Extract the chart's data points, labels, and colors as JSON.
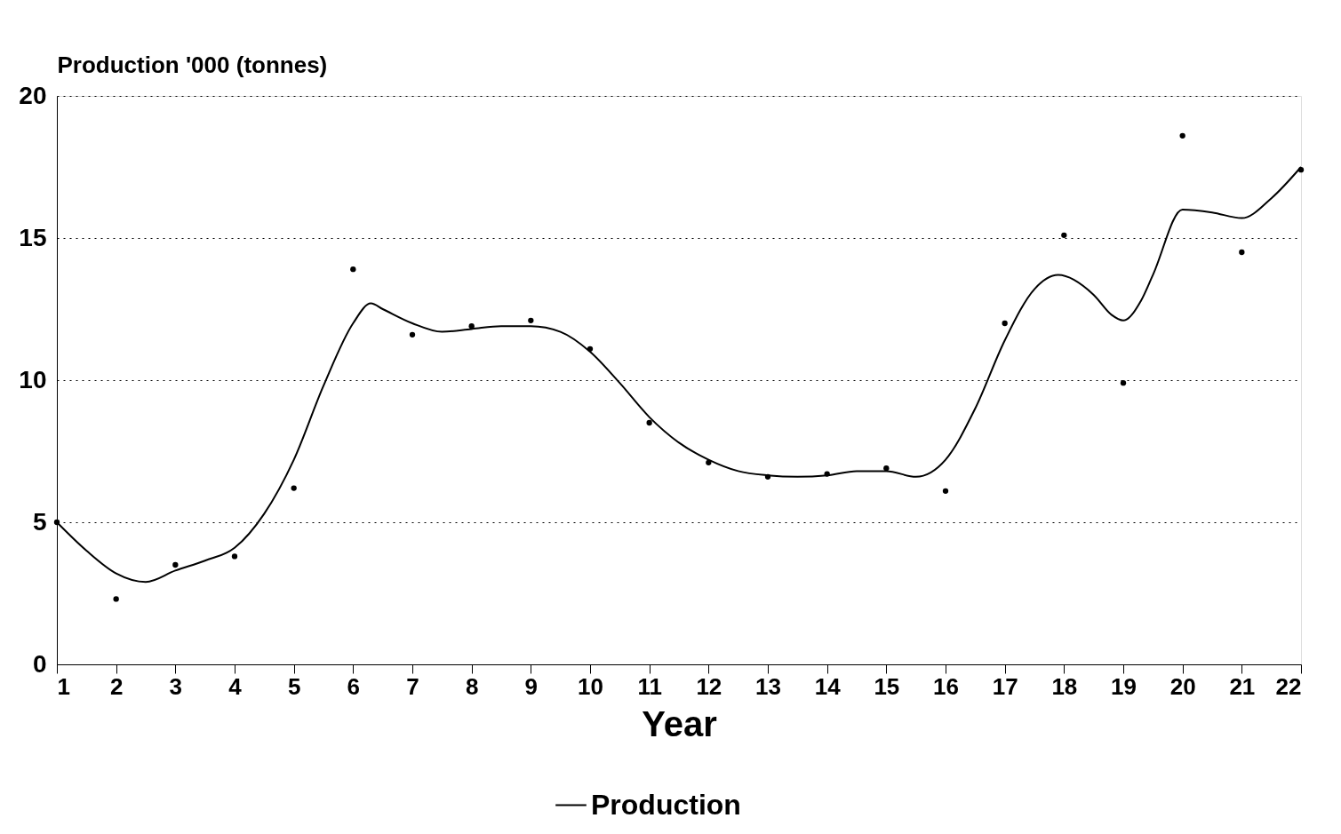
{
  "chart_data": {
    "type": "line",
    "xlabel": "Year",
    "ylabel": "Production '000 (tonnes)",
    "xlim": [
      1,
      22
    ],
    "xticks": [
      1,
      2,
      3,
      4,
      5,
      6,
      7,
      8,
      9,
      10,
      11,
      12,
      13,
      14,
      15,
      16,
      17,
      18,
      19,
      20,
      21,
      22
    ],
    "ylim": [
      0,
      20
    ],
    "yticks": [
      0,
      5,
      10,
      15,
      20
    ],
    "grid": "y",
    "legend": "bottom",
    "line_style": "solid",
    "series": [
      {
        "type": "scatter",
        "color": "#000000",
        "marker": "circle",
        "x": [
          1,
          2,
          3,
          4,
          5,
          6,
          7,
          8,
          9,
          10,
          11,
          12,
          13,
          14,
          15,
          16,
          17,
          18,
          19,
          20,
          21,
          22
        ],
        "values": [
          5.0,
          2.3,
          3.5,
          3.8,
          6.2,
          13.9,
          11.6,
          11.9,
          12.1,
          11.1,
          8.5,
          7.1,
          6.6,
          6.7,
          6.9,
          6.1,
          12.0,
          15.1,
          9.9,
          18.6,
          14.5,
          17.4
        ]
      },
      {
        "name": "Production",
        "color": "#000000",
        "marker": "none",
        "x": [
          1,
          1.5,
          2,
          2.5,
          3,
          3.5,
          4,
          4.5,
          5,
          5.5,
          6,
          6.3,
          6.5,
          7,
          7.5,
          8,
          8.5,
          9,
          9.5,
          10,
          10.5,
          11,
          11.5,
          12,
          12.5,
          13,
          13.5,
          14,
          14.5,
          15,
          15.5,
          16,
          16.5,
          17,
          17.5,
          17.9,
          18.5,
          18.8,
          19,
          19.3,
          19.5,
          20,
          20.5,
          21,
          21.5,
          22
        ],
        "values": [
          5.0,
          4.0,
          3.2,
          2.9,
          3.3,
          3.65,
          4.1,
          5.3,
          7.2,
          9.8,
          12.0,
          12.7,
          12.5,
          12.0,
          11.7,
          11.8,
          11.9,
          11.9,
          11.7,
          11.0,
          9.9,
          8.7,
          7.8,
          7.2,
          6.8,
          6.65,
          6.6,
          6.65,
          6.8,
          6.8,
          6.6,
          7.2,
          9.0,
          11.4,
          13.2,
          13.7,
          13.0,
          12.3,
          12.1,
          12.8,
          13.7,
          16.0,
          15.9,
          15.7,
          16.4,
          17.5
        ]
      }
    ]
  }
}
